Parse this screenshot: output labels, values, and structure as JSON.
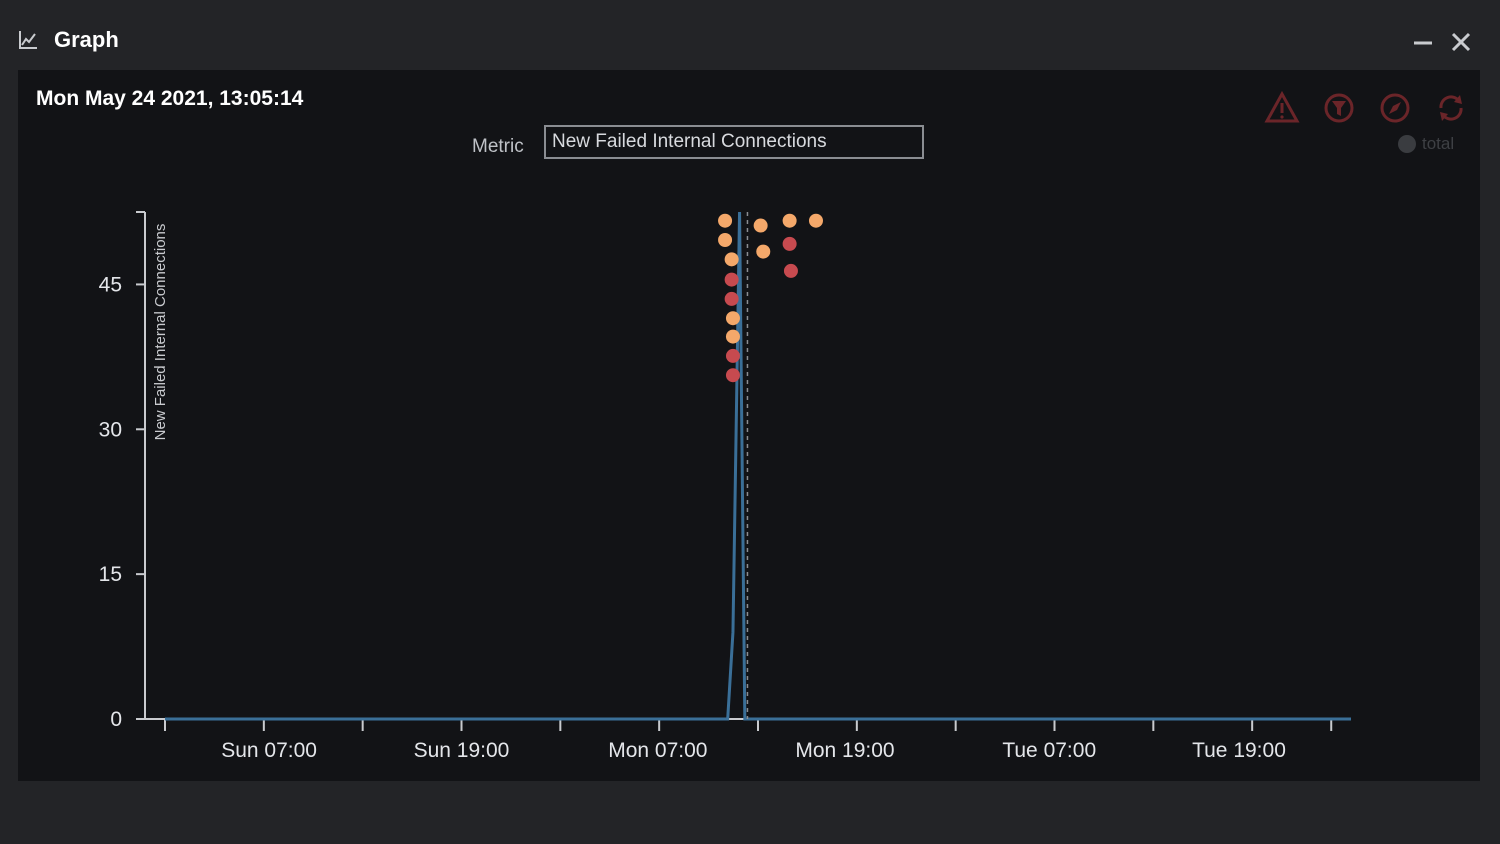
{
  "window": {
    "title": "Graph",
    "icon": "line-chart-icon",
    "minimize_icon": "minimize-icon",
    "close_icon": "close-icon"
  },
  "panel": {
    "timestamp": "Mon May 24 2021, 13:05:14",
    "metric_label": "Metric",
    "metric_value": "New Failed Internal Connections",
    "toolbar_icons": [
      "warning-icon",
      "filter-icon",
      "compass-icon",
      "refresh-icon"
    ],
    "legend_label": "total"
  },
  "colors": {
    "background": "#232427",
    "panel": "#121316",
    "line": "#3a6f98",
    "dot_orange": "#f4a86a",
    "dot_red": "#c74a4f",
    "icon_red": "#c8323a"
  },
  "chart_data": {
    "type": "line",
    "ylabel": "New Failed Internal Connections",
    "xlabel": "",
    "ylim": [
      0,
      52.5
    ],
    "yticks": [
      0,
      15,
      30,
      45
    ],
    "ytick_labels": [
      "0",
      "15",
      "30",
      "45"
    ],
    "xlim": [
      0,
      90
    ],
    "x_unit": "hours since Sun 04:00",
    "xticks": [
      0,
      7.5,
      15,
      22.5,
      30,
      37.5,
      45,
      52.5,
      60,
      67.5,
      75,
      82.5,
      88.5
    ],
    "xtick_labels": [
      {
        "x": 7.9,
        "label": "Sun 07:00"
      },
      {
        "x": 22.5,
        "label": "Sun 19:00"
      },
      {
        "x": 37.4,
        "label": "Mon 07:00"
      },
      {
        "x": 51.6,
        "label": "Mon 19:00"
      },
      {
        "x": 67.1,
        "label": "Tue 07:00"
      },
      {
        "x": 81.5,
        "label": "Tue 19:00"
      }
    ],
    "series": [
      {
        "name": "total",
        "x": [
          0,
          42.7,
          43.1,
          43.6,
          44.0,
          90
        ],
        "values": [
          0,
          0,
          9,
          52.5,
          0,
          0
        ]
      }
    ],
    "marker_x": 44.2,
    "annotations": [
      {
        "x": 42.5,
        "y": 51.6,
        "kind": "orange"
      },
      {
        "x": 42.5,
        "y": 49.6,
        "kind": "orange"
      },
      {
        "x": 43.0,
        "y": 47.6,
        "kind": "orange"
      },
      {
        "x": 43.0,
        "y": 45.5,
        "kind": "red"
      },
      {
        "x": 43.0,
        "y": 43.5,
        "kind": "red"
      },
      {
        "x": 43.1,
        "y": 41.5,
        "kind": "orange"
      },
      {
        "x": 43.1,
        "y": 39.6,
        "kind": "orange"
      },
      {
        "x": 43.1,
        "y": 37.6,
        "kind": "red"
      },
      {
        "x": 43.1,
        "y": 35.6,
        "kind": "red"
      },
      {
        "x": 45.2,
        "y": 51.1,
        "kind": "orange"
      },
      {
        "x": 45.4,
        "y": 48.4,
        "kind": "orange"
      },
      {
        "x": 47.4,
        "y": 51.6,
        "kind": "orange"
      },
      {
        "x": 47.4,
        "y": 49.2,
        "kind": "red"
      },
      {
        "x": 47.5,
        "y": 46.4,
        "kind": "red"
      },
      {
        "x": 49.4,
        "y": 51.6,
        "kind": "orange"
      }
    ]
  }
}
